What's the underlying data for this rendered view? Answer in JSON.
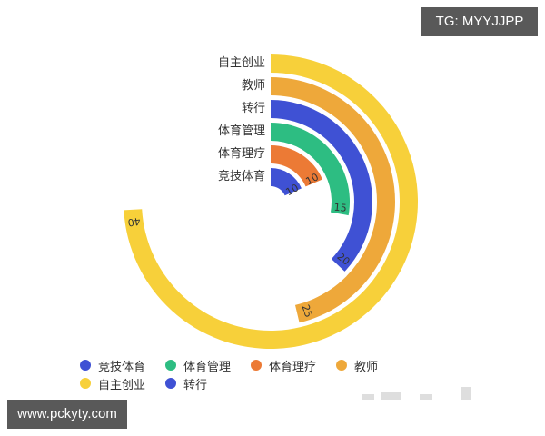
{
  "watermark_top": "TG: MYYJJPP",
  "watermark_bottom": "www.pckyty.com",
  "chart_data": {
    "type": "bar",
    "subtype": "polar-radial-bar",
    "title": "",
    "categories": [
      "竞技体育",
      "体育理疗",
      "体育管理",
      "转行",
      "教师",
      "自主创业"
    ],
    "values": [
      10,
      10,
      15,
      20,
      25,
      40
    ],
    "colors": [
      "#3f51d4",
      "#ec7a35",
      "#2dbd82",
      "#3f51d4",
      "#eea83a",
      "#f7d03a"
    ],
    "angle_max": 54,
    "start_angle": "12 o'clock, clockwise",
    "data_labels": true,
    "legend": {
      "position": "bottom",
      "entries": [
        {
          "label": "竞技体育",
          "color": "#3f51d4"
        },
        {
          "label": "体育管理",
          "color": "#2dbd82"
        },
        {
          "label": "体育理疗",
          "color": "#ec7a35"
        },
        {
          "label": "教师",
          "color": "#eea83a"
        },
        {
          "label": "自主创业",
          "color": "#f7d03a"
        },
        {
          "label": "转行",
          "color": "#3f51d4"
        }
      ]
    }
  }
}
